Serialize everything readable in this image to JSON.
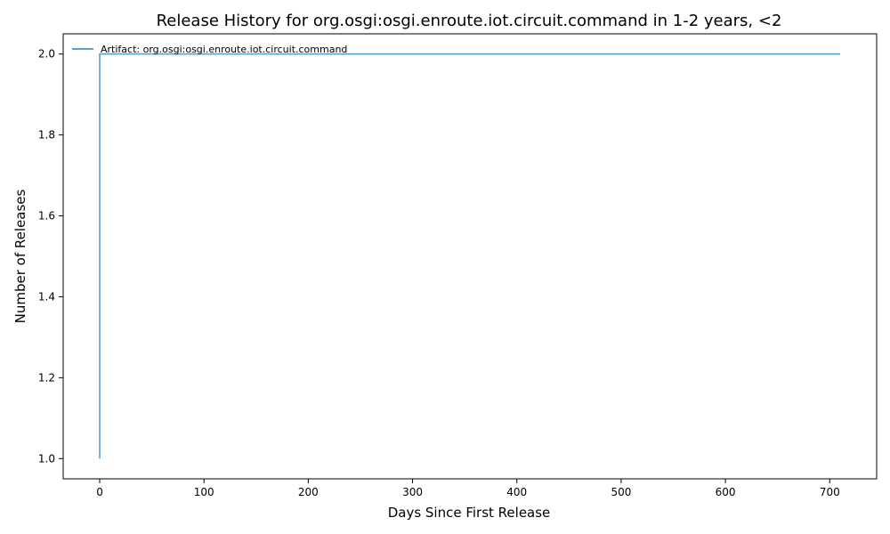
{
  "chart_data": {
    "type": "line",
    "title": "Release History for org.osgi:osgi.enroute.iot.circuit.command in 1-2 years, <2",
    "xlabel": "Days Since First Release",
    "ylabel": "Number of Releases",
    "xlim": [
      -35,
      745
    ],
    "ylim": [
      0.95,
      2.05
    ],
    "xticks": [
      0,
      100,
      200,
      300,
      400,
      500,
      600,
      700
    ],
    "xtick_labels": [
      "0",
      "100",
      "200",
      "300",
      "400",
      "500",
      "600",
      "700"
    ],
    "yticks": [
      1.0,
      1.2,
      1.4,
      1.6,
      1.8,
      2.0
    ],
    "ytick_labels": [
      "1.0",
      "1.2",
      "1.4",
      "1.6",
      "1.8",
      "2.0"
    ],
    "grid": false,
    "legend_position": "top-left",
    "series": [
      {
        "name": "Artifact: org.osgi:osgi.enroute.iot.circuit.command",
        "color": "#5aa0d0",
        "step": true,
        "x": [
          0,
          0,
          710
        ],
        "y": [
          1,
          2,
          2
        ]
      }
    ]
  }
}
